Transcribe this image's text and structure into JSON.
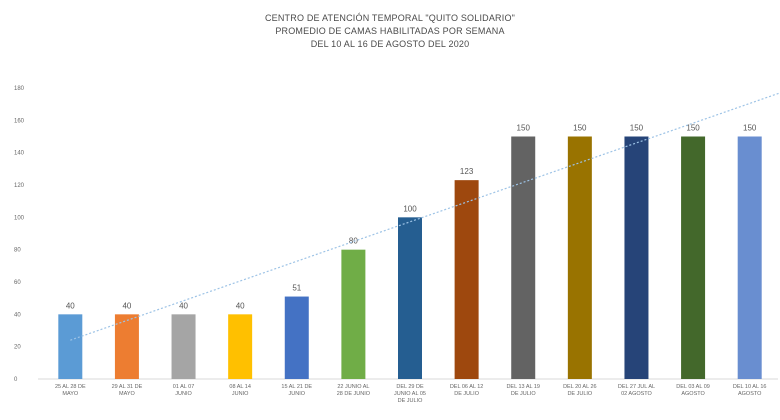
{
  "chart_data": {
    "type": "bar",
    "title": "CENTRO DE ATENCIÓN TEMPORAL \"QUITO SOLIDARIO\"",
    "subtitle": "PROMEDIO DE CAMAS HABILITADAS POR SEMANA",
    "subtitle2": "DEL 10 AL 16 DE AGOSTO DEL 2020",
    "ylim": [
      0,
      180
    ],
    "yticks": [
      0,
      20,
      40,
      60,
      80,
      100,
      120,
      140,
      160,
      180
    ],
    "grid": false,
    "legend": "none",
    "trendline": true,
    "categories": [
      [
        "25 AL 28 DE",
        "MAYO"
      ],
      [
        "29 AL 31 DE",
        "MAYO"
      ],
      [
        "01 AL 07",
        "JUNIO"
      ],
      [
        "08 AL 14",
        "JUNIO"
      ],
      [
        "15 AL 21 DE",
        "JUNIO"
      ],
      [
        "22 JUNIO AL",
        "28 DE JUNIO"
      ],
      [
        "DEL 29 DE",
        "JUNIO AL 05",
        "DE JULIO"
      ],
      [
        "DEL 06 AL 12",
        "DE JULIO"
      ],
      [
        "DEL 13 AL 19",
        "DE JULIO"
      ],
      [
        "DEL 20 AL 26",
        "DE JULIO"
      ],
      [
        "DEL 27 JUL AL",
        "02 AGOSTO"
      ],
      [
        "DEL 03 AL 09",
        "AGOSTO"
      ],
      [
        "DEL 10 AL 16",
        "AGOSTO"
      ]
    ],
    "values": [
      40,
      40,
      40,
      40,
      51,
      80,
      100,
      123,
      150,
      150,
      150,
      150,
      150
    ],
    "colors": [
      "#5b9bd5",
      "#ed7d31",
      "#a5a5a5",
      "#ffc000",
      "#4472c4",
      "#70ad47",
      "#255e91",
      "#9e480e",
      "#636363",
      "#997300",
      "#264478",
      "#43682b",
      "#698ed0"
    ],
    "trend_color": "#9dc3e6"
  }
}
